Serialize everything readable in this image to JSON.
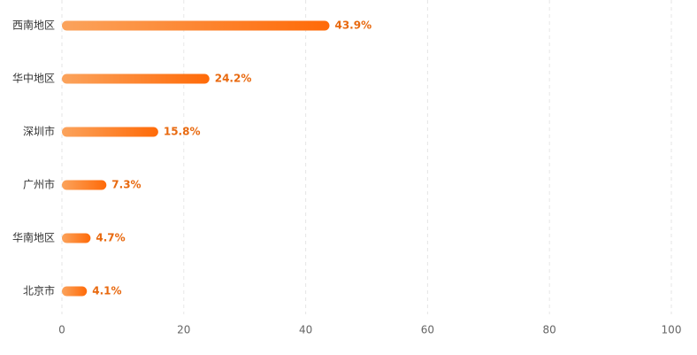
{
  "chart_data": {
    "type": "bar",
    "orientation": "horizontal",
    "categories": [
      "西南地区",
      "华中地区",
      "深圳市",
      "广州市",
      "华南地区",
      "北京市"
    ],
    "values": [
      43.9,
      24.2,
      15.8,
      7.3,
      4.7,
      4.1
    ],
    "value_labels": [
      "43.9%",
      "24.2%",
      "15.8%",
      "7.3%",
      "4.7%",
      "4.1%"
    ],
    "color": [
      "#fba35c",
      "#ff6a08"
    ],
    "xlim": [
      0,
      100
    ],
    "xticks": [
      0,
      20,
      40,
      60,
      80,
      100
    ],
    "grid": true
  }
}
